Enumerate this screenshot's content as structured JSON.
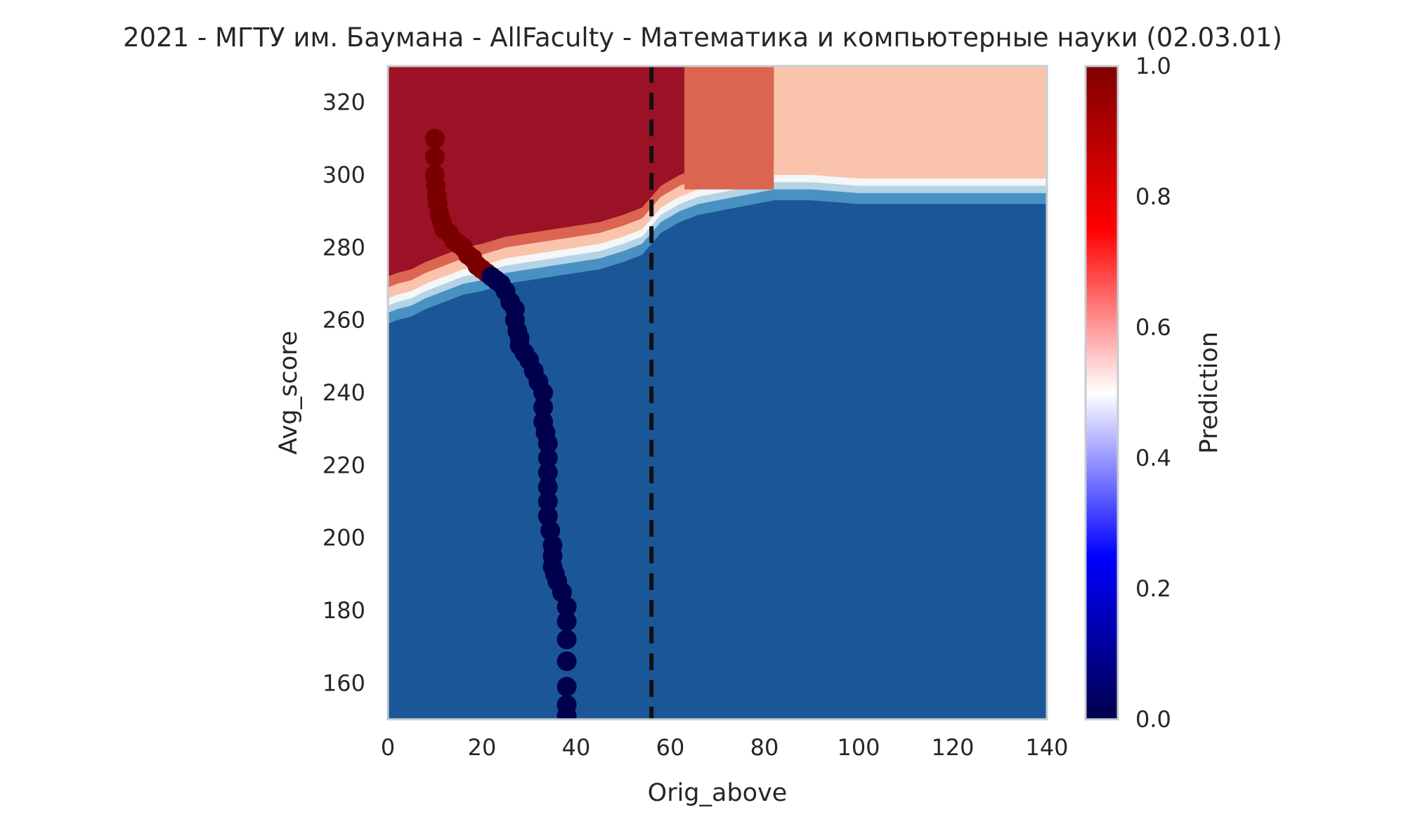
{
  "chart_data": {
    "type": "heatmap",
    "title": "2021 - МГТУ им. Баумана - AllFaculty - Математика и компьютерные науки (02.03.01)",
    "xlabel": "Orig_above",
    "ylabel": "Avg_score",
    "xlim": [
      0,
      140
    ],
    "ylim": [
      150,
      330
    ],
    "x_ticks": [
      0,
      20,
      40,
      60,
      80,
      100,
      120,
      140
    ],
    "y_ticks": [
      160,
      180,
      200,
      220,
      240,
      260,
      280,
      300,
      320
    ],
    "grid": false,
    "colormap": "seismic",
    "colorbar": {
      "label": "Prediction",
      "range": [
        0,
        1
      ],
      "ticks": [
        "0.0",
        "0.2",
        "0.4",
        "0.6",
        "0.8",
        "1.0"
      ]
    },
    "reference_line": {
      "x": 56,
      "style": "dashed",
      "color": "#111111"
    },
    "contour_colors": {
      "very_low": "#1b5797",
      "low": "#4a91c3",
      "low_mid": "#b4d3e6",
      "mid": "#f4f6f7",
      "high_mid": "#f9c4ab",
      "high": "#dc6552",
      "very_high": "#9b1226"
    },
    "boundary": {
      "x": [
        0,
        2,
        5,
        8,
        12,
        16,
        20,
        25,
        30,
        35,
        40,
        45,
        50,
        54,
        56,
        58,
        62,
        66,
        70,
        74,
        78,
        82,
        90,
        100,
        110,
        120,
        130,
        140
      ],
      "y": [
        265,
        266,
        267,
        269,
        271,
        273,
        274,
        276,
        277,
        278,
        279,
        280,
        282,
        284,
        287,
        290,
        293,
        295,
        296,
        297,
        298,
        299,
        299,
        298,
        298,
        298,
        298,
        298
      ]
    },
    "vertical_bands": [
      {
        "x_from": 63,
        "x_to": 82,
        "y_from": 296,
        "y_to": 330,
        "level": "high"
      },
      {
        "x_from": 82,
        "x_to": 140,
        "y_from": 300,
        "y_to": 330,
        "level": "high_mid"
      }
    ],
    "series": [
      {
        "name": "",
        "color": "#7a0000",
        "prediction": 1,
        "x": [
          10,
          10,
          10,
          10.2,
          10.4,
          10.6,
          11,
          11.5,
          12,
          13,
          14,
          15,
          16,
          17,
          18,
          19,
          20,
          21
        ],
        "y": [
          310,
          305,
          300,
          297,
          294,
          292,
          289,
          287,
          285,
          284,
          282,
          281,
          280,
          278,
          277,
          275,
          274,
          273
        ]
      },
      {
        "name": "",
        "color": "#00004d",
        "prediction": 0,
        "x": [
          22,
          23,
          24,
          25,
          26,
          27,
          27,
          27.5,
          28,
          28,
          29,
          30,
          31,
          32,
          33,
          33,
          33,
          33.5,
          34,
          34,
          34,
          34,
          34,
          34,
          34.5,
          35,
          35,
          35,
          35.5,
          36,
          37,
          38,
          38,
          38,
          38,
          38,
          38,
          38
        ],
        "y": [
          272,
          271,
          270,
          268,
          265,
          263,
          260,
          257,
          255,
          253,
          251,
          249,
          246,
          243,
          240,
          236,
          232,
          229,
          226,
          222,
          218,
          214,
          210,
          206,
          202,
          198,
          195,
          192,
          190,
          188,
          185,
          181,
          177,
          172,
          166,
          159,
          154,
          151
        ]
      }
    ]
  }
}
